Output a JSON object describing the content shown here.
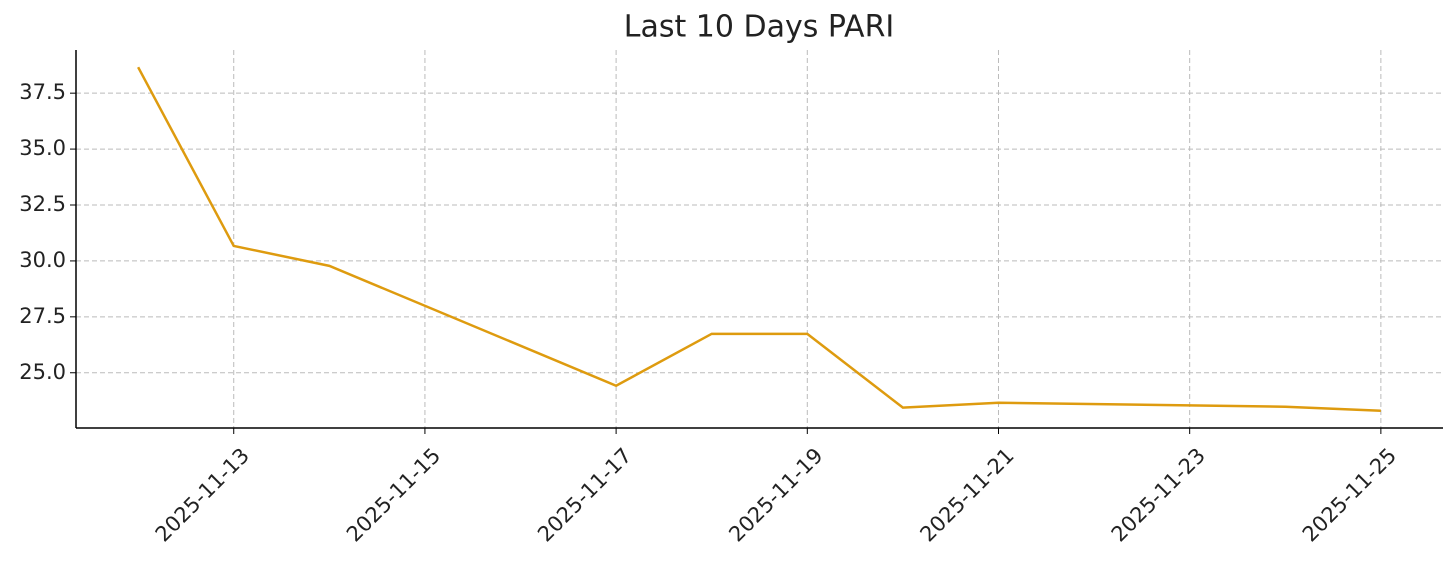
{
  "chart_data": {
    "type": "line",
    "title": "Last 10 Days PARI",
    "x": [
      "2025-11-12",
      "2025-11-13",
      "2025-11-14",
      "2025-11-17",
      "2025-11-18",
      "2025-11-19",
      "2025-11-20",
      "2025-11-21",
      "2025-11-24",
      "2025-11-25"
    ],
    "series": [
      {
        "name": "PARI",
        "color": "#de9b0f",
        "values": [
          38.66,
          30.67,
          29.78,
          24.42,
          26.74,
          26.74,
          23.44,
          23.66,
          23.48,
          23.3
        ]
      }
    ],
    "xlim": [
      "2025-11-11T08:24",
      "2025-11-25T15:36"
    ],
    "xticks": [
      "2025-11-13",
      "2025-11-15",
      "2025-11-17",
      "2025-11-19",
      "2025-11-21",
      "2025-11-23",
      "2025-11-25"
    ],
    "ylim": [
      22.53,
      39.43
    ],
    "yticks": [
      {
        "value": 25,
        "label": "25.0"
      },
      {
        "value": 27.5,
        "label": "27.5"
      },
      {
        "value": 30,
        "label": "30.0"
      },
      {
        "value": 32.5,
        "label": "32.5"
      },
      {
        "value": 35,
        "label": "35.0"
      },
      {
        "value": 37.5,
        "label": "37.5"
      }
    ],
    "grid": true
  }
}
